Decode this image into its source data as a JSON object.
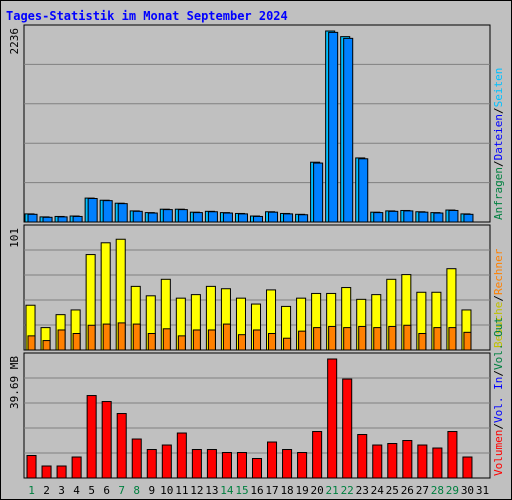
{
  "title": "Tages-Statistik im Monat September 2024",
  "colors": {
    "background": "#c0c0c0",
    "grid": "#808080",
    "hits": "#00c0ff",
    "files": "#0080ff",
    "visits": "#ffff00",
    "sites": "#ff8000",
    "kbytes": "#ff0000",
    "weekday_label": "#000000",
    "weekend_label": "#008040"
  },
  "panels": {
    "top": {
      "max_label": "2236",
      "right_legend": [
        {
          "text": "Anfragen",
          "color": "#008040"
        },
        {
          "text": "/",
          "color": "#000000"
        },
        {
          "text": "Dateien",
          "color": "#0000ff"
        },
        {
          "text": "/",
          "color": "#000000"
        },
        {
          "text": "Seiten",
          "color": "#00c0ff"
        }
      ]
    },
    "middle": {
      "max_label": "101",
      "right_legend": [
        {
          "text": "Besuche",
          "color": "#c0c000"
        },
        {
          "text": "/",
          "color": "#000000"
        },
        {
          "text": "Rechner",
          "color": "#ff8000"
        }
      ]
    },
    "bottom": {
      "max_label": "39.69 MB",
      "right_legend": [
        {
          "text": "Volumen",
          "color": "#ff0000"
        },
        {
          "text": "/",
          "color": "#000000"
        },
        {
          "text": "Vol. In",
          "color": "#0000ff"
        },
        {
          "text": "/",
          "color": "#000000"
        },
        {
          "text": "Vol. Out",
          "color": "#008040"
        }
      ]
    }
  },
  "chart_data": {
    "type": "bar",
    "title": "Tages-Statistik im Monat September 2024",
    "categories": [
      "1",
      "2",
      "3",
      "4",
      "5",
      "6",
      "7",
      "8",
      "9",
      "10",
      "11",
      "12",
      "13",
      "14",
      "15",
      "16",
      "17",
      "18",
      "19",
      "20",
      "21",
      "22",
      "23",
      "24",
      "25",
      "26",
      "27",
      "28",
      "29",
      "30",
      "31"
    ],
    "weekend_days": [
      "1",
      "7",
      "8",
      "14",
      "15",
      "21",
      "22",
      "28",
      "29"
    ],
    "top": {
      "ylim": [
        0,
        2236
      ],
      "series": [
        {
          "name": "Anfragen",
          "values": [
            95,
            60,
            65,
            70,
            280,
            255,
            220,
            130,
            110,
            150,
            150,
            115,
            125,
            110,
            100,
            70,
            120,
            100,
            90,
            700,
            2236,
            2170,
            750,
            115,
            130,
            135,
            120,
            110,
            140,
            95,
            0
          ]
        },
        {
          "name": "Dateien",
          "values": [
            90,
            55,
            60,
            65,
            275,
            250,
            215,
            125,
            105,
            145,
            145,
            110,
            120,
            105,
            95,
            65,
            115,
            95,
            85,
            690,
            2220,
            2150,
            740,
            110,
            125,
            130,
            115,
            105,
            135,
            90,
            0
          ]
        }
      ]
    },
    "middle": {
      "ylim": [
        0,
        101
      ],
      "series": [
        {
          "name": "Besuche",
          "values": [
            38,
            19,
            30,
            34,
            81,
            91,
            94,
            54,
            46,
            60,
            44,
            47,
            54,
            52,
            44,
            39,
            51,
            37,
            44,
            48,
            48,
            53,
            43,
            47,
            60,
            64,
            49,
            49,
            69,
            34,
            0
          ]
        },
        {
          "name": "Rechner",
          "values": [
            12,
            8,
            17,
            14,
            21,
            22,
            23,
            22,
            14,
            18,
            12,
            17,
            17,
            22,
            13,
            17,
            14,
            10,
            16,
            19,
            20,
            19,
            20,
            19,
            20,
            21,
            14,
            19,
            19,
            15,
            0
          ]
        }
      ]
    },
    "bottom": {
      "ylim": [
        0,
        39.69
      ],
      "ylabel": "MB",
      "series": [
        {
          "name": "Volumen",
          "values": [
            7.5,
            4.0,
            4.0,
            7.0,
            27.5,
            25.5,
            21.5,
            13.0,
            9.5,
            11.0,
            15.0,
            9.5,
            9.5,
            8.5,
            8.5,
            6.5,
            12.0,
            9.5,
            8.5,
            15.5,
            39.69,
            33.0,
            14.5,
            11.0,
            11.5,
            12.5,
            11.0,
            10.0,
            15.5,
            7.0,
            0
          ]
        }
      ]
    }
  }
}
